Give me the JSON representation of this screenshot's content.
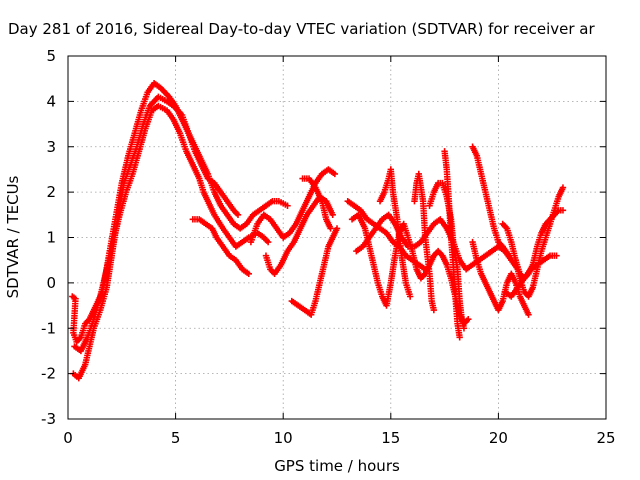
{
  "chart_data": {
    "type": "scatter",
    "title": "Day 281 of 2016, Sidereal Day-to-day VTEC variation (SDTVAR) for receiver ar",
    "xlabel": "GPS time / hours",
    "ylabel": "SDTVAR / TECUs",
    "xlim": [
      0,
      25
    ],
    "ylim": [
      -3,
      5
    ],
    "x_ticks": [
      "0",
      "5",
      "10",
      "15",
      "20",
      "25"
    ],
    "y_ticks": [
      "-3",
      "-2",
      "-1",
      "0",
      "1",
      "2",
      "3",
      "4",
      "5"
    ],
    "grid": true,
    "marker": "plus",
    "color": "#ff0000",
    "series": [
      {
        "points": [
          [
            0.2,
            -0.3
          ],
          [
            0.35,
            -0.35
          ],
          [
            0.25,
            -1.1
          ],
          [
            0.4,
            -1.3
          ],
          [
            0.6,
            -1.2
          ],
          [
            0.8,
            -0.9
          ],
          [
            1.0,
            -0.8
          ],
          [
            1.3,
            -0.5
          ],
          [
            1.6,
            -0.2
          ],
          [
            1.9,
            0.6
          ],
          [
            2.2,
            1.4
          ],
          [
            2.5,
            2.2
          ],
          [
            2.8,
            2.8
          ],
          [
            3.1,
            3.3
          ],
          [
            3.4,
            3.8
          ],
          [
            3.7,
            4.2
          ],
          [
            4.0,
            4.4
          ],
          [
            4.3,
            4.3
          ],
          [
            4.7,
            4.1
          ],
          [
            5.0,
            3.9
          ],
          [
            5.3,
            3.6
          ],
          [
            5.6,
            3.3
          ],
          [
            5.9,
            3.0
          ],
          [
            6.2,
            2.7
          ],
          [
            6.5,
            2.4
          ],
          [
            6.8,
            2.0
          ],
          [
            7.1,
            1.7
          ],
          [
            7.4,
            1.5
          ],
          [
            7.7,
            1.3
          ],
          [
            8.0,
            1.2
          ],
          [
            8.3,
            1.3
          ],
          [
            8.6,
            1.5
          ],
          [
            8.9,
            1.6
          ],
          [
            9.2,
            1.7
          ],
          [
            9.5,
            1.8
          ],
          [
            9.8,
            1.8
          ],
          [
            10.2,
            1.7
          ]
        ]
      },
      {
        "points": [
          [
            0.25,
            -2.0
          ],
          [
            0.5,
            -2.1
          ],
          [
            0.8,
            -1.8
          ],
          [
            1.0,
            -1.4
          ],
          [
            1.2,
            -1.0
          ],
          [
            1.5,
            -0.6
          ],
          [
            1.8,
            -0.1
          ],
          [
            2.0,
            0.5
          ],
          [
            2.2,
            1.1
          ],
          [
            2.4,
            1.7
          ],
          [
            2.6,
            2.2
          ],
          [
            2.9,
            2.6
          ],
          [
            3.2,
            3.0
          ],
          [
            3.5,
            3.5
          ],
          [
            3.8,
            3.9
          ],
          [
            4.2,
            4.1
          ],
          [
            4.6,
            4.0
          ],
          [
            4.9,
            3.9
          ],
          [
            5.3,
            3.7
          ],
          [
            5.6,
            3.3
          ],
          [
            5.9,
            2.9
          ],
          [
            6.2,
            2.6
          ],
          [
            6.5,
            2.3
          ],
          [
            6.8,
            2.2
          ],
          [
            7.1,
            2.0
          ],
          [
            7.4,
            1.8
          ],
          [
            7.7,
            1.6
          ],
          [
            7.9,
            1.5
          ]
        ]
      },
      {
        "points": [
          [
            0.3,
            -1.4
          ],
          [
            0.6,
            -1.5
          ],
          [
            0.9,
            -1.2
          ],
          [
            1.2,
            -0.8
          ],
          [
            1.5,
            -0.3
          ],
          [
            1.8,
            0.3
          ],
          [
            2.1,
            0.9
          ],
          [
            2.4,
            1.5
          ],
          [
            2.7,
            2.0
          ],
          [
            3.0,
            2.4
          ],
          [
            3.3,
            2.9
          ],
          [
            3.6,
            3.4
          ],
          [
            3.9,
            3.8
          ],
          [
            4.2,
            3.9
          ],
          [
            4.6,
            3.8
          ],
          [
            4.9,
            3.6
          ],
          [
            5.2,
            3.3
          ],
          [
            5.5,
            2.9
          ],
          [
            5.8,
            2.6
          ],
          [
            6.1,
            2.3
          ],
          [
            6.3,
            2.0
          ],
          [
            6.5,
            1.8
          ],
          [
            6.8,
            1.5
          ],
          [
            7.2,
            1.2
          ],
          [
            7.5,
            1.0
          ],
          [
            7.8,
            0.8
          ],
          [
            8.1,
            0.9
          ],
          [
            8.4,
            1.0
          ],
          [
            8.8,
            1.1
          ],
          [
            9.1,
            1.0
          ],
          [
            9.3,
            0.9
          ]
        ]
      },
      {
        "points": [
          [
            5.8,
            1.4
          ],
          [
            6.1,
            1.4
          ],
          [
            6.4,
            1.3
          ],
          [
            6.7,
            1.2
          ],
          [
            6.9,
            1.0
          ],
          [
            7.2,
            0.8
          ],
          [
            7.5,
            0.6
          ],
          [
            7.8,
            0.5
          ],
          [
            8.1,
            0.3
          ],
          [
            8.4,
            0.2
          ]
        ]
      },
      {
        "points": [
          [
            8.5,
            0.9
          ],
          [
            8.8,
            1.3
          ],
          [
            9.1,
            1.5
          ],
          [
            9.4,
            1.4
          ],
          [
            9.7,
            1.2
          ],
          [
            10.0,
            1.0
          ],
          [
            10.3,
            1.1
          ],
          [
            10.6,
            1.3
          ],
          [
            10.9,
            1.6
          ],
          [
            11.2,
            1.9
          ],
          [
            11.5,
            2.2
          ],
          [
            11.8,
            2.4
          ],
          [
            12.1,
            2.5
          ],
          [
            12.4,
            2.4
          ]
        ]
      },
      {
        "points": [
          [
            9.2,
            0.6
          ],
          [
            9.4,
            0.3
          ],
          [
            9.6,
            0.2
          ],
          [
            9.9,
            0.4
          ],
          [
            10.2,
            0.7
          ],
          [
            10.5,
            0.9
          ],
          [
            10.8,
            1.2
          ],
          [
            11.1,
            1.5
          ],
          [
            11.4,
            1.7
          ],
          [
            11.7,
            1.9
          ],
          [
            12.0,
            1.8
          ],
          [
            12.3,
            1.5
          ]
        ]
      },
      {
        "points": [
          [
            10.9,
            2.3
          ],
          [
            11.2,
            2.3
          ],
          [
            11.5,
            2.1
          ],
          [
            11.8,
            1.8
          ],
          [
            12.0,
            1.4
          ],
          [
            12.2,
            1.2
          ]
        ]
      },
      {
        "points": [
          [
            10.4,
            -0.4
          ],
          [
            10.7,
            -0.5
          ],
          [
            11.0,
            -0.6
          ],
          [
            11.3,
            -0.7
          ],
          [
            11.5,
            -0.4
          ],
          [
            11.7,
            0.0
          ],
          [
            11.9,
            0.4
          ],
          [
            12.1,
            0.8
          ],
          [
            12.3,
            1.0
          ],
          [
            12.5,
            1.2
          ]
        ]
      },
      {
        "points": [
          [
            13.2,
            1.4
          ],
          [
            13.5,
            1.5
          ],
          [
            13.8,
            1.2
          ],
          [
            14.0,
            0.8
          ],
          [
            14.2,
            0.4
          ],
          [
            14.4,
            0.0
          ],
          [
            14.6,
            -0.3
          ],
          [
            14.8,
            -0.5
          ],
          [
            15.0,
            0.0
          ],
          [
            15.2,
            0.6
          ],
          [
            15.4,
            1.1
          ],
          [
            15.6,
            1.3
          ],
          [
            15.8,
            1.0
          ],
          [
            16.0,
            0.7
          ],
          [
            16.2,
            0.3
          ],
          [
            16.4,
            0.1
          ],
          [
            16.6,
            0.2
          ],
          [
            16.8,
            0.4
          ],
          [
            17.0,
            0.6
          ],
          [
            17.2,
            0.7
          ],
          [
            17.4,
            0.6
          ],
          [
            17.6,
            0.4
          ],
          [
            17.8,
            0.1
          ],
          [
            18.0,
            -0.3
          ],
          [
            18.2,
            -0.7
          ],
          [
            18.4,
            -0.9
          ],
          [
            18.6,
            -0.8
          ]
        ]
      },
      {
        "points": [
          [
            13.4,
            0.7
          ],
          [
            13.7,
            0.8
          ],
          [
            14.0,
            1.0
          ],
          [
            14.3,
            1.2
          ],
          [
            14.6,
            1.4
          ],
          [
            14.9,
            1.5
          ],
          [
            15.2,
            1.3
          ],
          [
            15.5,
            1.0
          ],
          [
            15.8,
            0.8
          ],
          [
            16.1,
            0.8
          ],
          [
            16.4,
            0.9
          ],
          [
            16.7,
            1.1
          ],
          [
            17.0,
            1.3
          ],
          [
            17.3,
            1.4
          ],
          [
            17.6,
            1.2
          ],
          [
            17.9,
            0.9
          ],
          [
            18.2,
            0.5
          ],
          [
            18.5,
            0.3
          ],
          [
            18.8,
            0.4
          ],
          [
            19.1,
            0.5
          ],
          [
            19.4,
            0.6
          ],
          [
            19.7,
            0.7
          ],
          [
            20.0,
            0.8
          ],
          [
            20.3,
            0.7
          ],
          [
            20.6,
            0.5
          ],
          [
            20.9,
            0.3
          ]
        ]
      },
      {
        "points": [
          [
            14.5,
            1.8
          ],
          [
            14.7,
            2.0
          ],
          [
            14.9,
            2.3
          ],
          [
            15.0,
            2.5
          ],
          [
            15.1,
            2.0
          ],
          [
            15.3,
            1.4
          ],
          [
            15.5,
            0.6
          ],
          [
            15.7,
            0.0
          ],
          [
            15.9,
            -0.3
          ]
        ]
      },
      {
        "points": [
          [
            16.1,
            1.8
          ],
          [
            16.2,
            2.2
          ],
          [
            16.3,
            2.4
          ],
          [
            16.5,
            1.8
          ],
          [
            16.6,
            1.0
          ],
          [
            16.8,
            0.2
          ],
          [
            16.9,
            -0.4
          ],
          [
            17.0,
            -0.6
          ]
        ]
      },
      {
        "points": [
          [
            16.8,
            1.7
          ],
          [
            17.0,
            2.0
          ],
          [
            17.2,
            2.2
          ],
          [
            17.4,
            2.2
          ],
          [
            17.6,
            1.9
          ],
          [
            17.8,
            1.4
          ],
          [
            17.9,
            0.9
          ],
          [
            18.1,
            0.3
          ],
          [
            18.2,
            -0.4
          ],
          [
            18.3,
            -0.8
          ],
          [
            18.4,
            -1.0
          ]
        ]
      },
      {
        "points": [
          [
            17.5,
            2.9
          ],
          [
            17.6,
            2.5
          ],
          [
            17.7,
            1.8
          ],
          [
            17.8,
            1.0
          ],
          [
            17.9,
            0.4
          ],
          [
            18.0,
            -0.3
          ],
          [
            18.1,
            -0.9
          ],
          [
            18.2,
            -1.2
          ]
        ]
      },
      {
        "points": [
          [
            18.8,
            3.0
          ],
          [
            19.0,
            2.8
          ],
          [
            19.2,
            2.4
          ],
          [
            19.4,
            2.0
          ],
          [
            19.6,
            1.6
          ],
          [
            19.8,
            1.2
          ],
          [
            20.0,
            0.9
          ],
          [
            20.2,
            0.8
          ],
          [
            20.5,
            0.6
          ]
        ]
      },
      {
        "points": [
          [
            18.8,
            0.9
          ],
          [
            19.0,
            0.5
          ],
          [
            19.2,
            0.2
          ],
          [
            19.4,
            0.0
          ],
          [
            19.6,
            -0.2
          ],
          [
            19.8,
            -0.4
          ],
          [
            20.0,
            -0.6
          ],
          [
            20.2,
            -0.4
          ],
          [
            20.4,
            0.0
          ],
          [
            20.6,
            0.2
          ],
          [
            20.8,
            0.0
          ],
          [
            21.0,
            -0.3
          ],
          [
            21.2,
            -0.5
          ],
          [
            21.4,
            -0.7
          ]
        ]
      },
      {
        "points": [
          [
            20.2,
            1.3
          ],
          [
            20.4,
            1.2
          ],
          [
            20.6,
            0.9
          ],
          [
            20.8,
            0.5
          ],
          [
            21.0,
            0.1
          ],
          [
            21.2,
            -0.2
          ],
          [
            21.4,
            -0.3
          ],
          [
            21.6,
            -0.1
          ],
          [
            21.8,
            0.3
          ],
          [
            22.0,
            0.7
          ],
          [
            22.2,
            1.0
          ],
          [
            22.4,
            1.3
          ],
          [
            22.6,
            1.6
          ],
          [
            22.8,
            1.9
          ],
          [
            23.0,
            2.1
          ]
        ]
      },
      {
        "points": [
          [
            20.8,
            0.5
          ],
          [
            21.0,
            0.2
          ],
          [
            21.2,
            0.1
          ],
          [
            21.4,
            0.2
          ],
          [
            21.6,
            0.4
          ],
          [
            21.8,
            0.8
          ],
          [
            22.0,
            1.1
          ],
          [
            22.2,
            1.3
          ],
          [
            22.4,
            1.4
          ],
          [
            22.6,
            1.5
          ],
          [
            22.8,
            1.6
          ],
          [
            23.0,
            1.6
          ]
        ]
      },
      {
        "points": [
          [
            20.3,
            -0.2
          ],
          [
            20.6,
            -0.3
          ],
          [
            20.9,
            -0.1
          ],
          [
            21.2,
            0.1
          ],
          [
            21.5,
            0.3
          ],
          [
            21.8,
            0.4
          ],
          [
            22.1,
            0.5
          ],
          [
            22.4,
            0.6
          ],
          [
            22.7,
            0.6
          ]
        ]
      },
      {
        "points": [
          [
            13.0,
            1.8
          ],
          [
            13.3,
            1.7
          ],
          [
            13.6,
            1.6
          ],
          [
            13.9,
            1.4
          ],
          [
            14.2,
            1.3
          ],
          [
            14.5,
            1.2
          ],
          [
            14.8,
            1.1
          ],
          [
            15.1,
            0.9
          ],
          [
            15.4,
            0.8
          ],
          [
            15.7,
            0.6
          ],
          [
            16.0,
            0.5
          ],
          [
            16.3,
            0.4
          ],
          [
            16.6,
            0.3
          ]
        ]
      }
    ]
  }
}
